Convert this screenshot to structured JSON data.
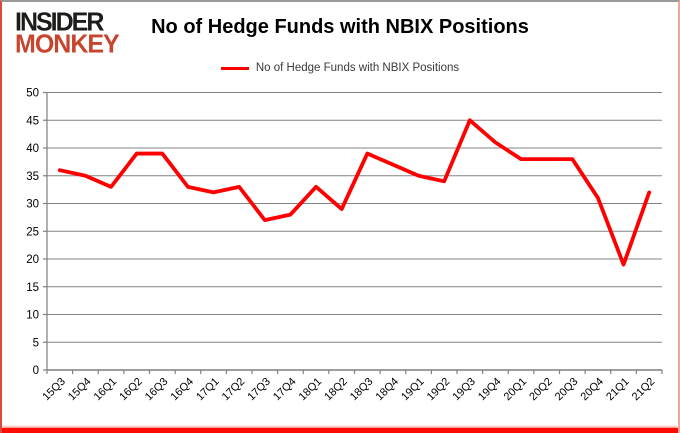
{
  "logo": {
    "line1": "INSIDER",
    "line2": "MONKEY"
  },
  "header": {
    "title": "No of Hedge Funds with NBIX Positions"
  },
  "legend": {
    "label": "No of Hedge Funds with NBIX Positions",
    "line_color": "#ff0000"
  },
  "colors": {
    "series_line": "#ff0000",
    "gridline": "#848484",
    "axis": "#7f7f7f",
    "tick_text": "#000000",
    "frame_red": "#fe0b00",
    "logo_black": "#1c1c1a",
    "logo_red": "#c7452e"
  },
  "chart_data": {
    "type": "line",
    "title": "No of Hedge Funds with NBIX Positions",
    "xlabel": "",
    "ylabel": "",
    "ylim": [
      0,
      50
    ],
    "ytick_step": 5,
    "ytick_labels": [
      "0",
      "5",
      "10",
      "15",
      "20",
      "25",
      "30",
      "35",
      "40",
      "45",
      "50"
    ],
    "grid": true,
    "legend_position": "top",
    "categories": [
      "15Q3",
      "15Q4",
      "16Q1",
      "16Q2",
      "16Q3",
      "16Q4",
      "17Q1",
      "17Q2",
      "17Q3",
      "17Q4",
      "18Q1",
      "18Q2",
      "18Q3",
      "18Q4",
      "19Q1",
      "19Q2",
      "19Q3",
      "19Q4",
      "20Q1",
      "20Q2",
      "20Q3",
      "20Q4",
      "21Q1",
      "21Q2"
    ],
    "series": [
      {
        "name": "No of Hedge Funds with NBIX Positions",
        "color": "#ff0000",
        "values": [
          36,
          35,
          33,
          39,
          39,
          33,
          32,
          33,
          27,
          28,
          33,
          29,
          39,
          37,
          35,
          34,
          45,
          41,
          38,
          38,
          38,
          31,
          19,
          32
        ]
      }
    ]
  }
}
